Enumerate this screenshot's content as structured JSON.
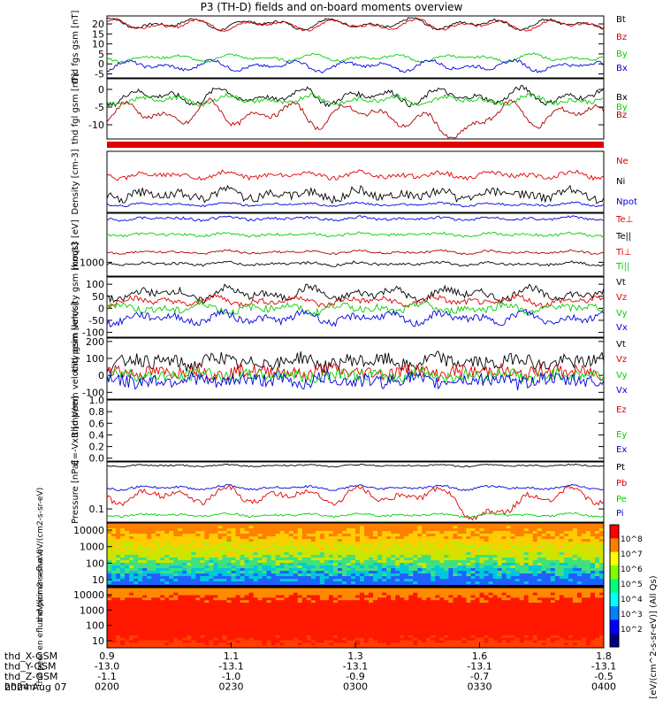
{
  "title": "P3 (TH-D) fields and on-board moments overview",
  "date": "2024 Aug 07",
  "colors": {
    "black": "#000000",
    "red": "#e00000",
    "green": "#00d000",
    "blue": "#0000e0",
    "darkred": "#b00000"
  },
  "chart_data": [
    {
      "type": "line",
      "ylabel": "thd fgs gsm [nT]",
      "yticks": [
        "20",
        "15",
        "10",
        "5",
        "0",
        "-5"
      ],
      "ylim": [
        -7,
        24
      ],
      "series": [
        {
          "name": "Bt",
          "color": "black",
          "base": 20,
          "amp": 3,
          "noise": 0.6
        },
        {
          "name": "Bz",
          "color": "red",
          "base": 19.5,
          "amp": 3,
          "noise": 0.6
        },
        {
          "name": "By",
          "color": "green",
          "base": 3,
          "amp": 2,
          "noise": 0.6
        },
        {
          "name": "Bx",
          "color": "blue",
          "base": -1,
          "amp": 3,
          "noise": 0.8
        }
      ]
    },
    {
      "type": "line",
      "ylabel": "thd fgl gsm [nT]",
      "yticks": [
        "0",
        "-5",
        "-10"
      ],
      "ylim": [
        -14,
        3
      ],
      "series": [
        {
          "name": "Bx",
          "color": "black",
          "base": -2,
          "amp": 2.5,
          "noise": 0.7
        },
        {
          "name": "By",
          "color": "green",
          "base": -3,
          "amp": 1.5,
          "noise": 0.6
        },
        {
          "name": "Bz",
          "color": "darkred",
          "base": -7,
          "amp": 4,
          "noise": 0.6
        }
      ]
    },
    {
      "type": "line",
      "ylabel": "Density [cm-3]",
      "yticks": [],
      "series": [
        {
          "name": "Ne",
          "color": "red"
        },
        {
          "name": "Ni",
          "color": "black"
        },
        {
          "name": "Npot",
          "color": "blue"
        }
      ]
    },
    {
      "type": "line",
      "ylabel": "moqt3 [eV]",
      "yticks": [
        "1000"
      ],
      "series": [
        {
          "name": "Te⊥",
          "color": "red"
        },
        {
          "name": "Te||",
          "color": "black"
        },
        {
          "name": "Ti⊥",
          "color": "red"
        },
        {
          "name": "Ti||",
          "color": "green"
        }
      ]
    },
    {
      "type": "line",
      "ylabel": "thd peim velocity gsm [km/s]",
      "yticks": [
        "100",
        "50",
        "0",
        "-50",
        "-100"
      ],
      "ylim": [
        -120,
        130
      ],
      "series": [
        {
          "name": "Vt",
          "color": "black",
          "base": 60,
          "amp": 30,
          "noise": 15
        },
        {
          "name": "Vz",
          "color": "red",
          "base": 30,
          "amp": 20,
          "noise": 12
        },
        {
          "name": "Vy",
          "color": "green",
          "base": 0,
          "amp": 20,
          "noise": 15
        },
        {
          "name": "Vx",
          "color": "blue",
          "base": -40,
          "amp": 25,
          "noise": 15
        }
      ]
    },
    {
      "type": "line",
      "ylabel": "thd peem velocity gsm [km/s]",
      "yticks": [
        "200",
        "100",
        "0",
        "-100"
      ],
      "ylim": [
        -140,
        220
      ],
      "series": [
        {
          "name": "Vt",
          "color": "black",
          "base": 80,
          "amp": 30,
          "noise": 40
        },
        {
          "name": "Vz",
          "color": "red",
          "base": 20,
          "amp": 20,
          "noise": 40
        },
        {
          "name": "Vy",
          "color": "green",
          "base": 0,
          "amp": 20,
          "noise": 35
        },
        {
          "name": "Vx",
          "color": "blue",
          "base": -30,
          "amp": 20,
          "noise": 40
        }
      ]
    },
    {
      "type": "line",
      "ylabel": "E=-VxB [mV/m]",
      "yticks": [
        "1.0",
        "0.8",
        "0.6",
        "0.4",
        "0.2",
        "0.0"
      ],
      "ylim": [
        -0.05,
        1.0
      ],
      "series": [
        {
          "name": "Ez",
          "color": "red"
        },
        {
          "name": "Ey",
          "color": "green"
        },
        {
          "name": "Ex",
          "color": "blue"
        }
      ]
    },
    {
      "type": "line",
      "ylabel": "Pressure [nPa]",
      "yticks": [
        "0.1"
      ],
      "series": [
        {
          "name": "Pt",
          "color": "black"
        },
        {
          "name": "Pb",
          "color": "red"
        },
        {
          "name": "Pe",
          "color": "green"
        },
        {
          "name": "Pi",
          "color": "blue"
        }
      ]
    },
    {
      "type": "heatmap",
      "ylabel": "thd peir en eflux eV/(cm2-s-sr-eV)",
      "yticks": [
        "10000",
        "1000",
        "100",
        "10"
      ]
    },
    {
      "type": "heatmap",
      "ylabel": "thd peer en eflux eV/(cm2-s-sr-eV)",
      "yticks": [
        "10000",
        "1000",
        "100",
        "10"
      ]
    }
  ],
  "colorbar": {
    "label": "[eV/(cm^2-s-sr-eV)] (All Qs)",
    "ticks": [
      "10^8",
      "10^7",
      "10^6",
      "10^5",
      "10^4",
      "10^3",
      "10^2"
    ]
  },
  "xaxis": {
    "row_labels": [
      "thd_X-GSM",
      "thd_Y-GSM",
      "thd_Z-GSM",
      "hhmm"
    ],
    "columns": [
      [
        "0.9",
        "-13.0",
        "-1.1",
        "0200"
      ],
      [
        "1.1",
        "-13.1",
        "-1.0",
        "0230"
      ],
      [
        "1.3",
        "-13.1",
        "-0.9",
        "0300"
      ],
      [
        "1.6",
        "-13.1",
        "-0.7",
        "0330"
      ],
      [
        "1.8",
        "-13.1",
        "-0.5",
        "0400"
      ]
    ]
  }
}
